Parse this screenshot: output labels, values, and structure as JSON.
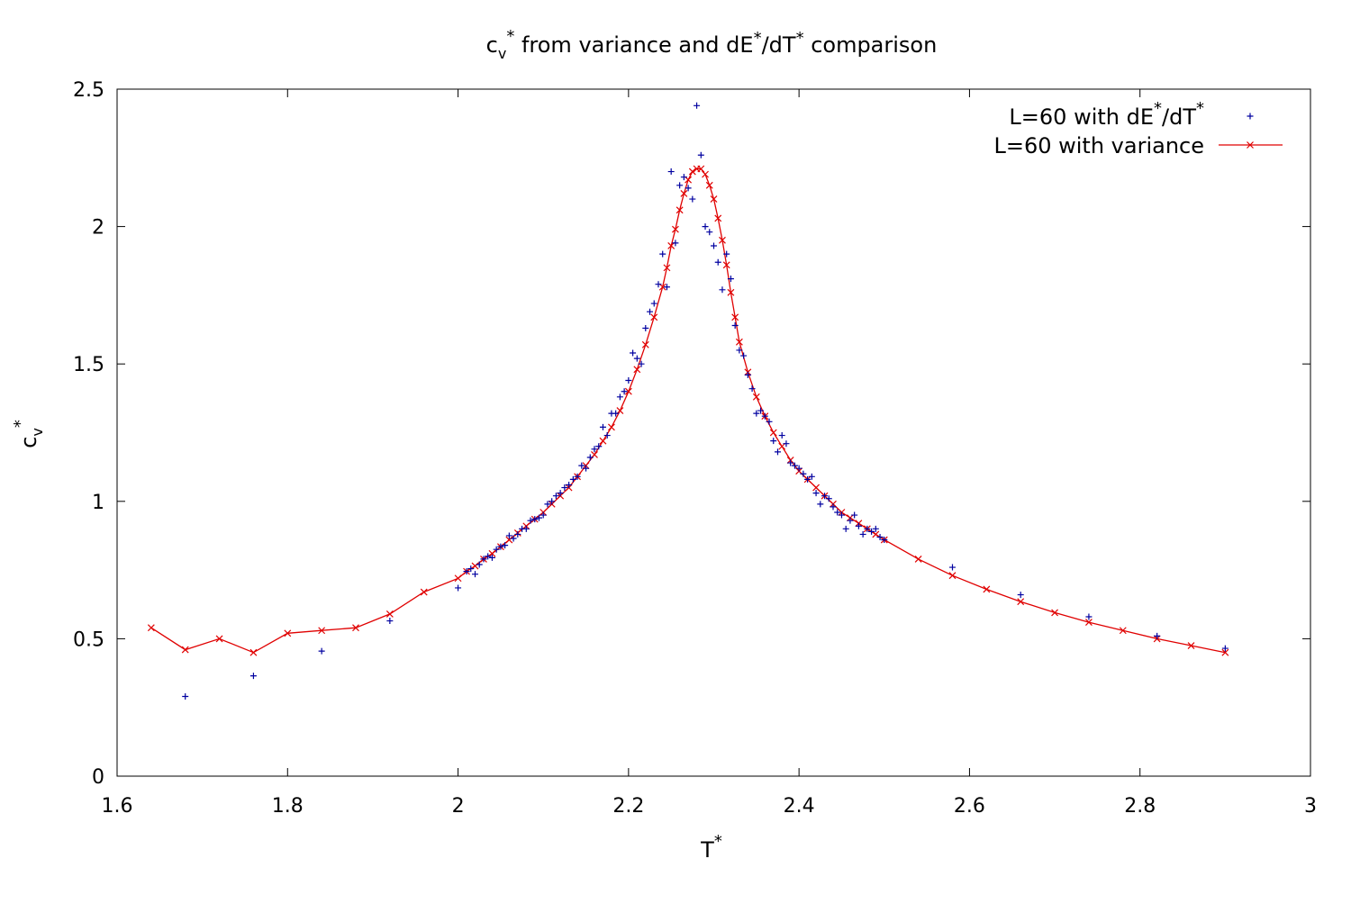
{
  "chart_data": {
    "type": "scatter",
    "title_parts": {
      "c": "c",
      "v": "v",
      "star": "*",
      "mid": " from variance and dE",
      "slash": "/dT",
      "end": " comparison"
    },
    "xlabel_parts": {
      "base": "T",
      "star": "*"
    },
    "ylabel_parts": {
      "base": "c",
      "sub": "v",
      "star": "*"
    },
    "xlim": [
      1.6,
      3.0
    ],
    "ylim": [
      0,
      2.5
    ],
    "xticks": [
      1.6,
      1.8,
      2,
      2.2,
      2.4,
      2.6,
      2.8,
      3
    ],
    "xtick_labels": [
      "1.6",
      "1.8",
      "2",
      "2.2",
      "2.4",
      "2.6",
      "2.8",
      "3"
    ],
    "yticks": [
      0,
      0.5,
      1,
      1.5,
      2,
      2.5
    ],
    "ytick_labels": [
      "0",
      "0.5",
      "1",
      "1.5",
      "2",
      "2.5"
    ],
    "grid": false,
    "legend_position": "top-right",
    "legend": {
      "series1_parts": {
        "a": "L=60 with dE",
        "star1": "*",
        "b": "/dT",
        "star2": "*"
      },
      "series2": "L=60 with variance"
    },
    "series": [
      {
        "name": "L=60 with dE*/dT*",
        "style": "points-plus",
        "color": "#0000a0",
        "x": [
          1.68,
          1.76,
          1.84,
          1.92,
          2.0,
          2.01,
          2.015,
          2.02,
          2.025,
          2.03,
          2.035,
          2.04,
          2.045,
          2.05,
          2.055,
          2.06,
          2.065,
          2.07,
          2.075,
          2.08,
          2.085,
          2.09,
          2.095,
          2.1,
          2.105,
          2.11,
          2.115,
          2.12,
          2.125,
          2.13,
          2.135,
          2.14,
          2.145,
          2.15,
          2.155,
          2.16,
          2.165,
          2.17,
          2.175,
          2.18,
          2.185,
          2.19,
          2.195,
          2.2,
          2.205,
          2.21,
          2.215,
          2.22,
          2.225,
          2.23,
          2.235,
          2.24,
          2.245,
          2.25,
          2.255,
          2.26,
          2.265,
          2.27,
          2.275,
          2.28,
          2.285,
          2.29,
          2.295,
          2.3,
          2.305,
          2.31,
          2.315,
          2.32,
          2.325,
          2.33,
          2.335,
          2.34,
          2.345,
          2.35,
          2.355,
          2.36,
          2.365,
          2.37,
          2.375,
          2.38,
          2.385,
          2.39,
          2.395,
          2.4,
          2.405,
          2.41,
          2.415,
          2.42,
          2.425,
          2.43,
          2.435,
          2.44,
          2.445,
          2.45,
          2.455,
          2.46,
          2.465,
          2.47,
          2.475,
          2.48,
          2.485,
          2.49,
          2.495,
          2.5,
          2.58,
          2.66,
          2.74,
          2.82,
          2.9
        ],
        "y": [
          0.29,
          0.365,
          0.455,
          0.565,
          0.685,
          0.745,
          0.755,
          0.735,
          0.77,
          0.79,
          0.8,
          0.795,
          0.825,
          0.835,
          0.84,
          0.875,
          0.865,
          0.88,
          0.9,
          0.9,
          0.93,
          0.935,
          0.94,
          0.95,
          0.99,
          1.0,
          1.02,
          1.03,
          1.05,
          1.06,
          1.08,
          1.09,
          1.13,
          1.12,
          1.16,
          1.19,
          1.2,
          1.27,
          1.24,
          1.32,
          1.32,
          1.38,
          1.4,
          1.44,
          1.54,
          1.52,
          1.5,
          1.63,
          1.69,
          1.72,
          1.79,
          1.9,
          1.78,
          2.2,
          1.94,
          2.15,
          2.18,
          2.14,
          2.1,
          2.44,
          2.26,
          2.0,
          1.98,
          1.93,
          1.87,
          1.77,
          1.9,
          1.81,
          1.64,
          1.55,
          1.53,
          1.46,
          1.41,
          1.32,
          1.33,
          1.31,
          1.29,
          1.22,
          1.18,
          1.24,
          1.21,
          1.14,
          1.13,
          1.12,
          1.1,
          1.08,
          1.09,
          1.03,
          0.99,
          1.02,
          1.01,
          0.98,
          0.96,
          0.95,
          0.9,
          0.93,
          0.95,
          0.91,
          0.88,
          0.9,
          0.89,
          0.9,
          0.87,
          0.86,
          0.76,
          0.66,
          0.58,
          0.51,
          0.465
        ]
      },
      {
        "name": "L=60 with variance",
        "style": "line-x",
        "color": "#e00000",
        "x": [
          1.64,
          1.68,
          1.72,
          1.76,
          1.8,
          1.84,
          1.88,
          1.92,
          1.96,
          2.0,
          2.01,
          2.02,
          2.03,
          2.04,
          2.05,
          2.06,
          2.07,
          2.08,
          2.09,
          2.1,
          2.11,
          2.12,
          2.13,
          2.14,
          2.15,
          2.16,
          2.17,
          2.18,
          2.19,
          2.2,
          2.21,
          2.22,
          2.23,
          2.24,
          2.245,
          2.25,
          2.255,
          2.26,
          2.265,
          2.27,
          2.275,
          2.28,
          2.285,
          2.29,
          2.295,
          2.3,
          2.305,
          2.31,
          2.315,
          2.32,
          2.325,
          2.33,
          2.34,
          2.35,
          2.36,
          2.37,
          2.38,
          2.39,
          2.4,
          2.41,
          2.42,
          2.43,
          2.44,
          2.45,
          2.46,
          2.47,
          2.48,
          2.49,
          2.5,
          2.54,
          2.58,
          2.62,
          2.66,
          2.7,
          2.74,
          2.78,
          2.82,
          2.86,
          2.9
        ],
        "y": [
          0.54,
          0.46,
          0.5,
          0.45,
          0.52,
          0.53,
          0.54,
          0.59,
          0.67,
          0.72,
          0.745,
          0.765,
          0.79,
          0.81,
          0.835,
          0.86,
          0.885,
          0.91,
          0.935,
          0.96,
          0.99,
          1.02,
          1.05,
          1.09,
          1.13,
          1.17,
          1.22,
          1.27,
          1.33,
          1.4,
          1.48,
          1.57,
          1.67,
          1.78,
          1.85,
          1.93,
          1.99,
          2.06,
          2.12,
          2.17,
          2.2,
          2.21,
          2.21,
          2.19,
          2.15,
          2.1,
          2.03,
          1.95,
          1.86,
          1.76,
          1.67,
          1.58,
          1.47,
          1.38,
          1.31,
          1.25,
          1.2,
          1.15,
          1.11,
          1.08,
          1.05,
          1.02,
          0.99,
          0.96,
          0.94,
          0.92,
          0.9,
          0.88,
          0.86,
          0.79,
          0.73,
          0.68,
          0.635,
          0.595,
          0.56,
          0.53,
          0.5,
          0.475,
          0.45
        ]
      }
    ]
  }
}
